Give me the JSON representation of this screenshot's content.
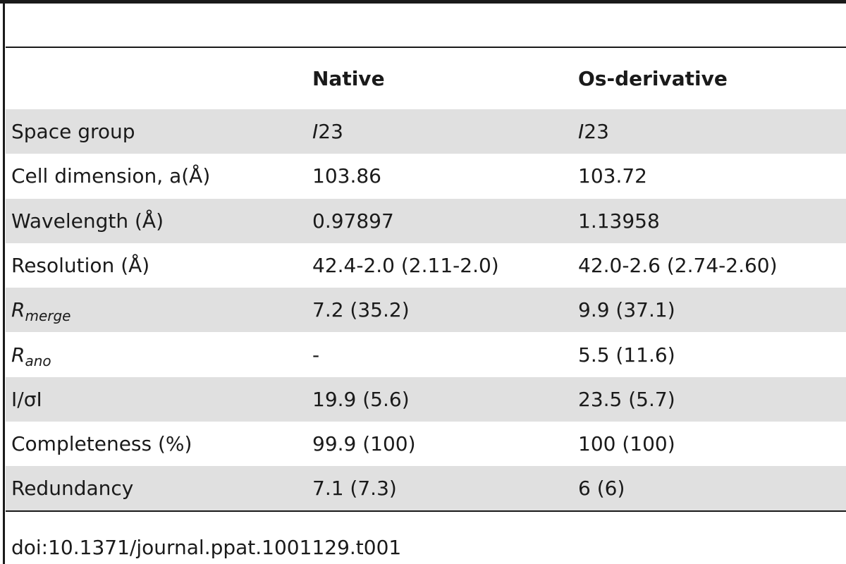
{
  "header": {
    "col1": "",
    "col2": "Native",
    "col3": "Os-derivative"
  },
  "rows": [
    {
      "label": "Space group",
      "native_prefix": "I",
      "native": "23",
      "os_prefix": "I",
      "os": "23"
    },
    {
      "label": "Cell dimension, a(Å)",
      "native": "103.86",
      "os": "103.72"
    },
    {
      "label": "Wavelength (Å)",
      "native": "0.97897",
      "os": "1.13958"
    },
    {
      "label": "Resolution (Å)",
      "native": "42.4-2.0 (2.11-2.0)",
      "os": "42.0-2.6 (2.74-2.60)"
    },
    {
      "label_main": "R",
      "label_sub": "merge",
      "native": "7.2 (35.2)",
      "os": "9.9 (37.1)"
    },
    {
      "label_main": "R",
      "label_sub": "ano",
      "native": "-",
      "os": "5.5 (11.6)"
    },
    {
      "label": "I/σI",
      "native": "19.9 (5.6)",
      "os": "23.5 (5.7)"
    },
    {
      "label": "Completeness (%)",
      "native": "99.9 (100)",
      "os": "100 (100)"
    },
    {
      "label": "Redundancy",
      "native": "7.1 (7.3)",
      "os": "6 (6)"
    }
  ],
  "footer": {
    "doi": "doi:10.1371/journal.ppat.1001129.t001"
  }
}
